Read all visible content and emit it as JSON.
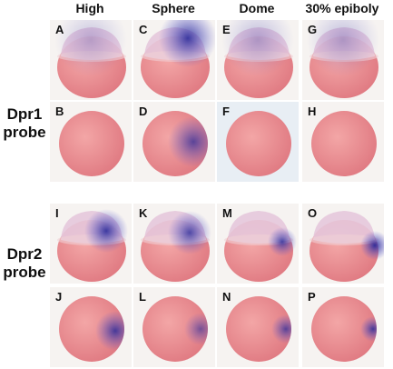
{
  "header": {
    "columns": [
      "High",
      "Sphere",
      "Dome",
      "30% epiboly"
    ]
  },
  "rows": [
    {
      "label_lines": [
        "Dpr1",
        "probe"
      ]
    },
    {
      "label_lines": [
        "Dpr2",
        "probe"
      ]
    }
  ],
  "panels": [
    [
      "A",
      "C",
      "E",
      "G"
    ],
    [
      "B",
      "D",
      "F",
      "H"
    ],
    [
      "I",
      "K",
      "M",
      "O"
    ],
    [
      "J",
      "L",
      "N",
      "P"
    ]
  ]
}
